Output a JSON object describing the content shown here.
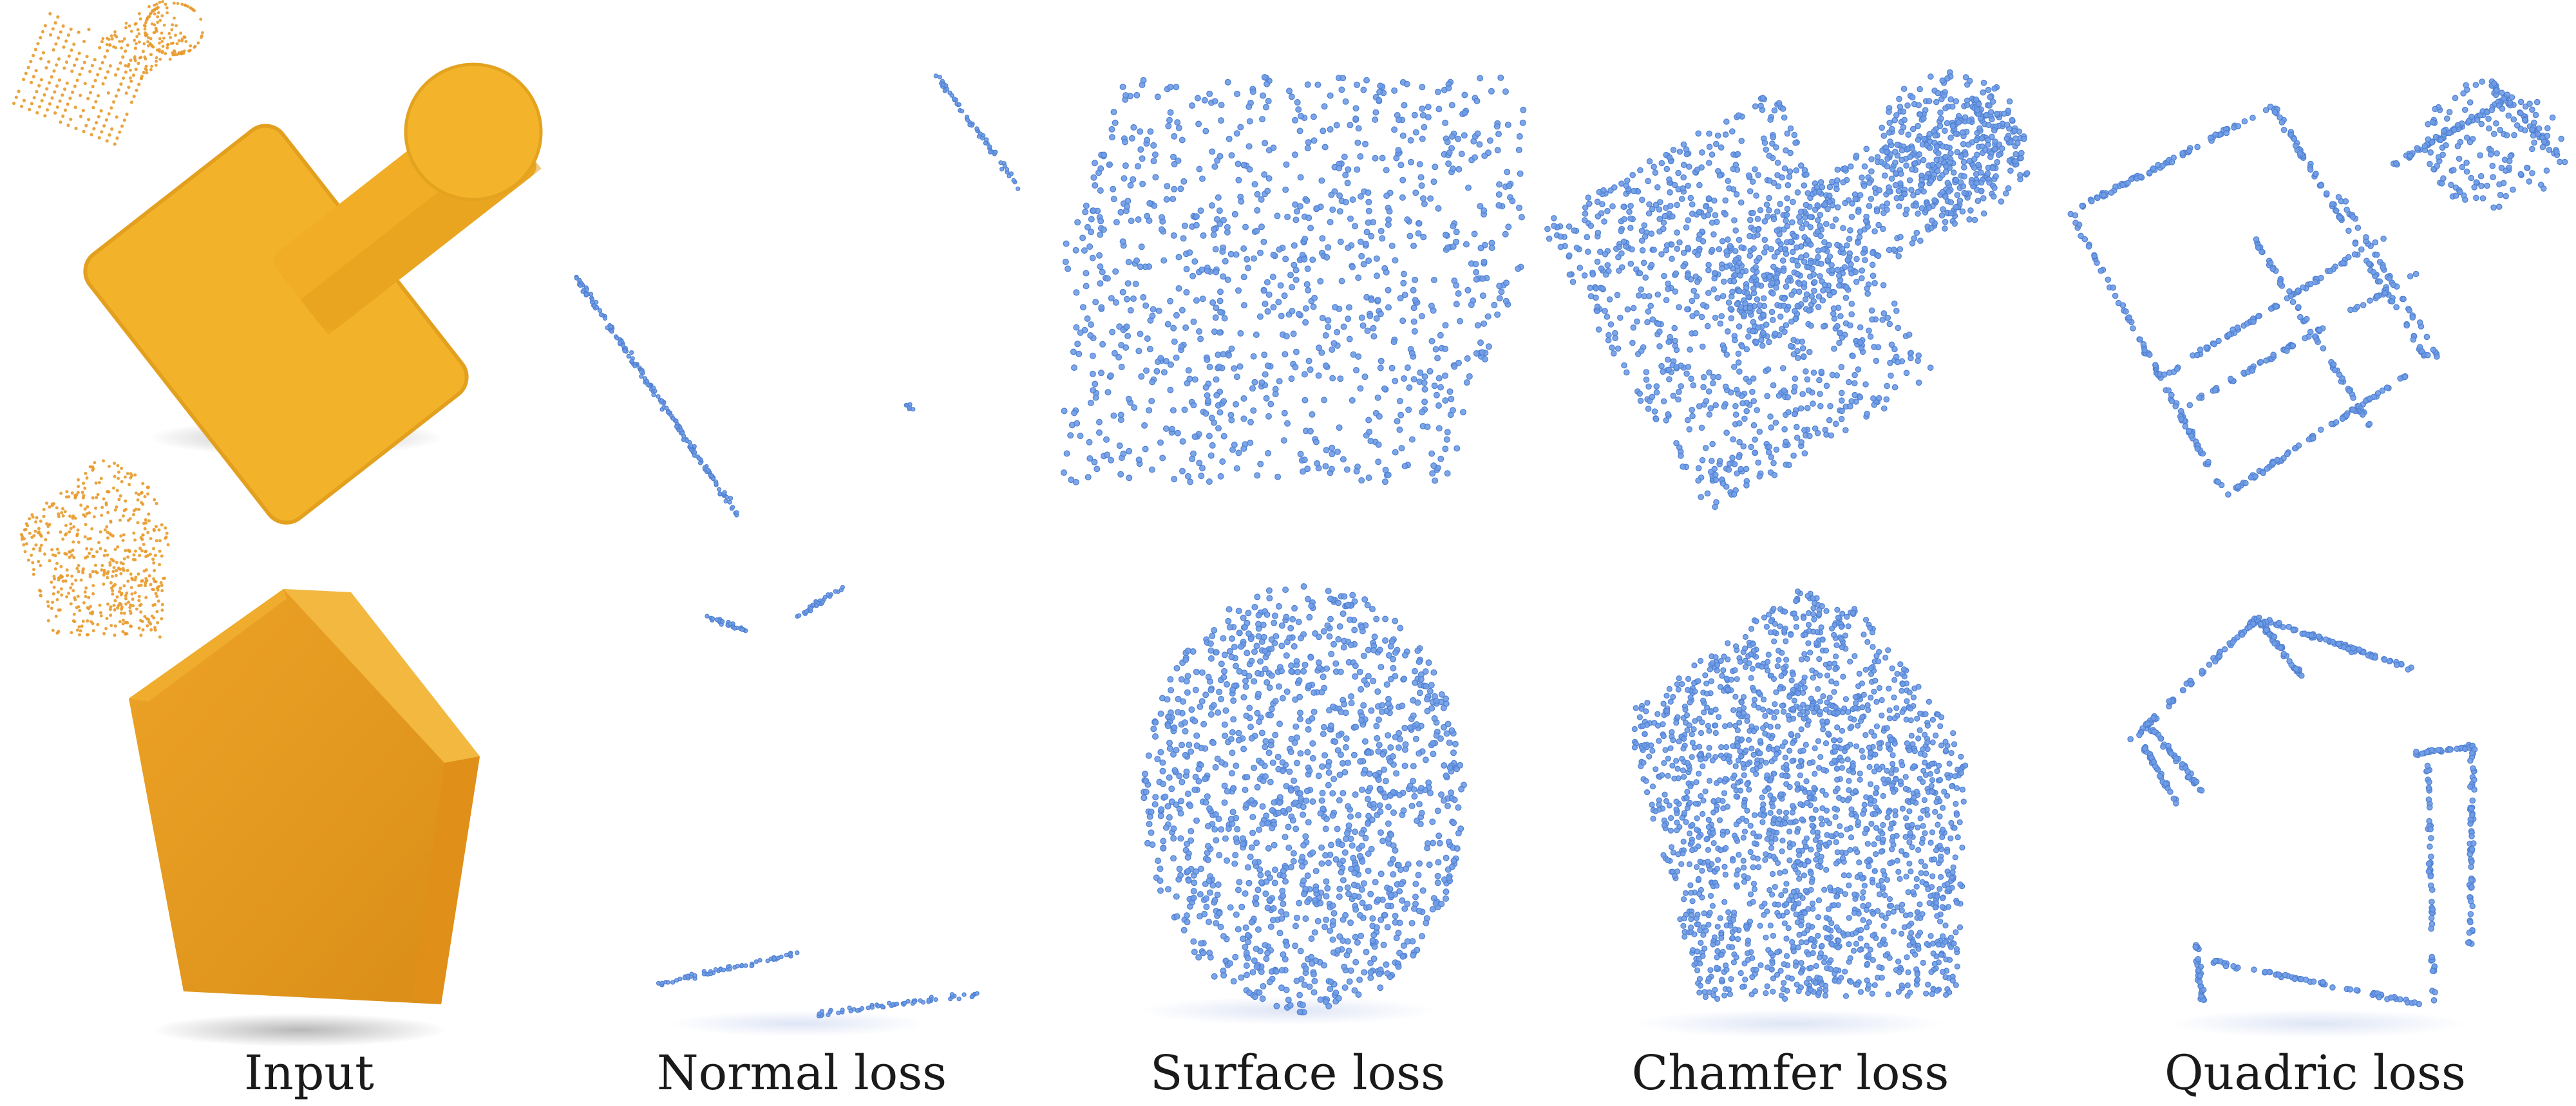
{
  "columns": [
    {
      "label": "Input"
    },
    {
      "label": "Normal loss"
    },
    {
      "label": "Surface loss"
    },
    {
      "label": "Chamfer loss"
    },
    {
      "label": "Quadric loss"
    }
  ],
  "colors": {
    "mesh_top": "#f0b429",
    "mesh_shade": "#dd9d1c",
    "mesh_bottom": "#e5961e",
    "input_points": "#e89a2c",
    "predicted_points": "#6f9ce6",
    "caption_text": "#1a1a1a"
  }
}
